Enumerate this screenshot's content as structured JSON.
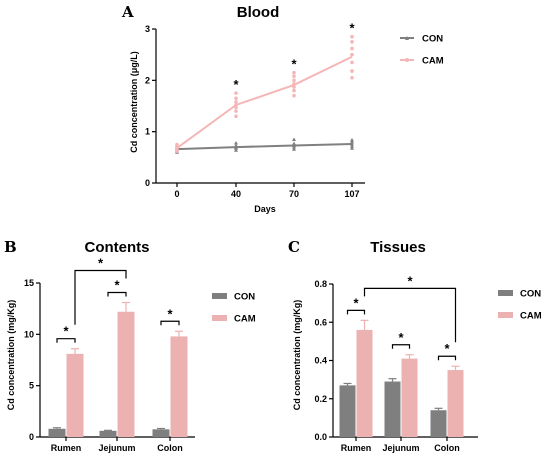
{
  "colors": {
    "con_line": "#808080",
    "cam_line": "#f4b6b6",
    "con_bar": "#7f7f7f",
    "cam_bar": "#ecb2b2",
    "axis": "#000000"
  },
  "chart_data": [
    {
      "panel": "A",
      "type": "line",
      "title": "Blood",
      "xlabel": "Days",
      "ylabel": "Cd concentration (μg/L)",
      "x": [
        "0",
        "40",
        "70",
        "107"
      ],
      "ylim": [
        0,
        3
      ],
      "yticks": [
        "0",
        "1",
        "2",
        "3"
      ],
      "legend": {
        "position": "right",
        "entries": [
          "CON",
          "CAM"
        ]
      },
      "series": [
        {
          "name": "CON",
          "values": [
            0.66,
            0.7,
            0.73,
            0.76
          ],
          "points": [
            [
              0.6,
              0.63,
              0.66,
              0.7,
              0.72
            ],
            [
              0.64,
              0.68,
              0.7,
              0.73,
              0.78
            ],
            [
              0.66,
              0.7,
              0.73,
              0.77,
              0.85
            ],
            [
              0.68,
              0.72,
              0.76,
              0.8,
              0.84
            ]
          ]
        },
        {
          "name": "CAM",
          "values": [
            0.68,
            1.52,
            1.91,
            2.46
          ],
          "points": [
            [
              0.62,
              0.65,
              0.68,
              0.72,
              0.75
            ],
            [
              1.3,
              1.4,
              1.47,
              1.52,
              1.58,
              1.65,
              1.75
            ],
            [
              1.7,
              1.8,
              1.87,
              1.93,
              2.0,
              2.08,
              2.15
            ],
            [
              2.05,
              2.18,
              2.35,
              2.5,
              2.62,
              2.75,
              2.85
            ]
          ]
        }
      ],
      "significance": [
        "",
        "*",
        "*",
        "*"
      ]
    },
    {
      "panel": "B",
      "type": "bar",
      "title": "Contents",
      "ylabel": "Cd concentration (mg/Kg)",
      "categories": [
        "Rumen",
        "Jejunum",
        "Colon"
      ],
      "ylim": [
        0,
        15
      ],
      "yticks": [
        "0",
        "5",
        "10",
        "15"
      ],
      "legend": {
        "position": "right",
        "entries": [
          "CON",
          "CAM"
        ]
      },
      "series": [
        {
          "name": "CON",
          "values": [
            0.8,
            0.6,
            0.75
          ],
          "errors": [
            0.1,
            0.05,
            0.08
          ]
        },
        {
          "name": "CAM",
          "values": [
            8.1,
            12.2,
            9.8
          ],
          "errors": [
            0.5,
            0.9,
            0.5
          ]
        }
      ],
      "significance": [
        "*",
        "*",
        "*"
      ],
      "extra_bracket": {
        "from": "Rumen",
        "to": "Jejunum",
        "label": "*"
      }
    },
    {
      "panel": "C",
      "type": "bar",
      "title": "Tissues",
      "ylabel": "Cd concentration (mg/Kg)",
      "categories": [
        "Rumen",
        "Jejunum",
        "Colon"
      ],
      "ylim": [
        0,
        0.8
      ],
      "yticks": [
        "0.0",
        "0.2",
        "0.4",
        "0.6",
        "0.8"
      ],
      "legend": {
        "position": "right",
        "entries": [
          "CON",
          "CAM"
        ]
      },
      "series": [
        {
          "name": "CON",
          "values": [
            0.27,
            0.29,
            0.14
          ],
          "errors": [
            0.01,
            0.015,
            0.01
          ]
        },
        {
          "name": "CAM",
          "values": [
            0.56,
            0.41,
            0.35
          ],
          "errors": [
            0.05,
            0.02,
            0.02
          ]
        }
      ],
      "significance": [
        "*",
        "*",
        "*"
      ],
      "extra_bracket": {
        "from": "Rumen",
        "to": "Colon",
        "label": "*"
      }
    }
  ]
}
